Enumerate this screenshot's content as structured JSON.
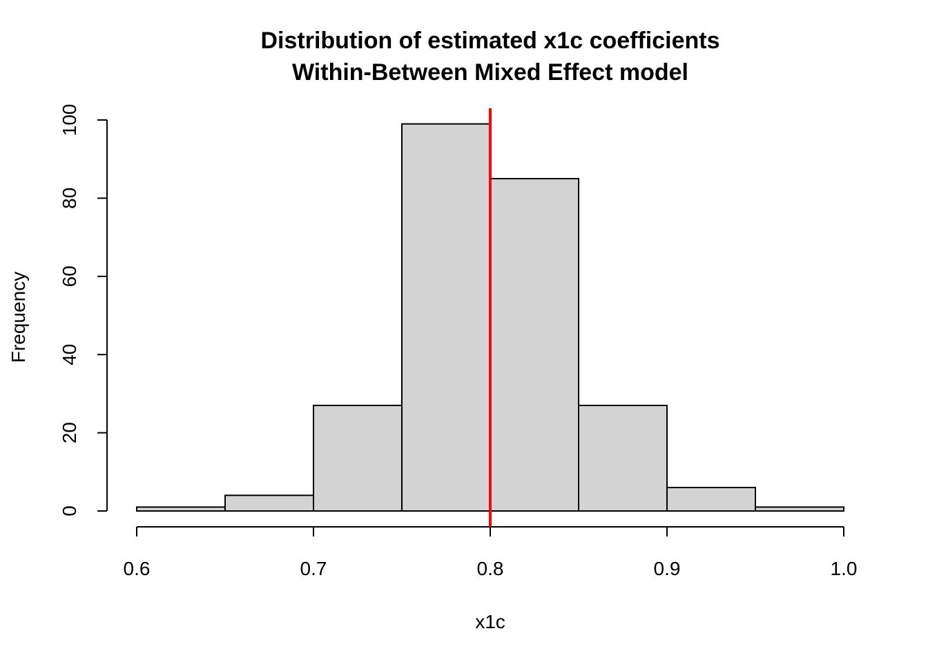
{
  "chart_data": {
    "type": "bar",
    "subtype": "histogram",
    "title": "Distribution of estimated x1c coefficients",
    "subtitle": "Within-Between Mixed Effect model",
    "xlabel": "x1c",
    "ylabel": "Frequency",
    "bins": [
      {
        "from": 0.6,
        "to": 0.65,
        "count": 1
      },
      {
        "from": 0.65,
        "to": 0.7,
        "count": 4
      },
      {
        "from": 0.7,
        "to": 0.75,
        "count": 27
      },
      {
        "from": 0.75,
        "to": 0.8,
        "count": 99
      },
      {
        "from": 0.8,
        "to": 0.85,
        "count": 85
      },
      {
        "from": 0.85,
        "to": 0.9,
        "count": 27
      },
      {
        "from": 0.9,
        "to": 0.95,
        "count": 6
      },
      {
        "from": 0.95,
        "to": 1.0,
        "count": 1
      }
    ],
    "xlim": [
      0.6,
      1.0
    ],
    "ylim": [
      0,
      100
    ],
    "xticks": [
      "0.6",
      "0.7",
      "0.8",
      "0.9",
      "1.0"
    ],
    "yticks": [
      "0",
      "20",
      "40",
      "60",
      "80",
      "100"
    ],
    "reference_line": {
      "x": 0.8,
      "color": "#ff0000"
    },
    "bar_fill": "#d3d3d3",
    "bar_stroke": "#000000",
    "grid": false,
    "legend": "none"
  }
}
